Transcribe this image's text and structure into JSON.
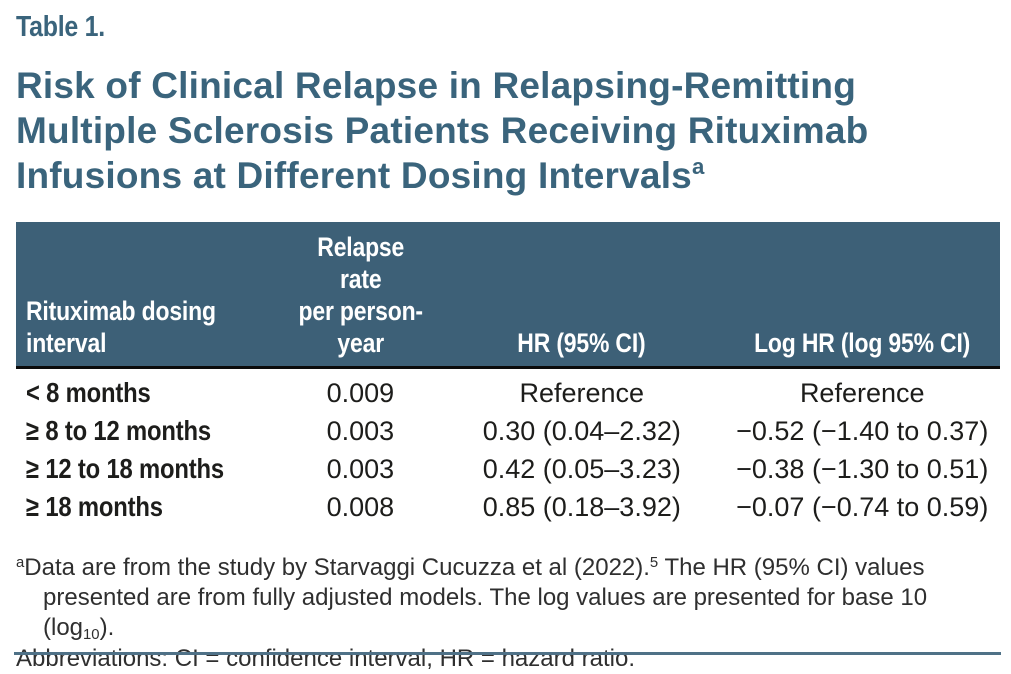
{
  "page": {
    "accent_color": "#3A647C",
    "header_bg_color": "#3D6077",
    "bottom_rule_color": "#4F7187",
    "table_label": "Table 1.",
    "title_line1": "Risk of Clinical Relapse in Relapsing-Remitting",
    "title_line2": "Multiple Sclerosis Patients Receiving Rituximab",
    "title_line3": "Infusions at Different Dosing Intervals",
    "title_superscript": "a"
  },
  "table": {
    "columns": {
      "interval_line1": "Rituximab dosing",
      "interval_line2": "interval",
      "relapse_line1": "Relapse rate",
      "relapse_line2": "per person-year",
      "hr": "HR (95% CI)",
      "log_hr": "Log HR (log 95% CI)"
    },
    "rows": [
      {
        "interval": "< 8 months",
        "relapse_rate": "0.009",
        "hr": "Reference",
        "log_hr": "Reference"
      },
      {
        "interval": "≥ 8 to 12 months",
        "relapse_rate": "0.003",
        "hr": "0.30 (0.04–2.32)",
        "log_hr": "−0.52 (−1.40 to 0.37)"
      },
      {
        "interval": "≥ 12 to 18 months",
        "relapse_rate": "0.003",
        "hr": "0.42 (0.05–3.23)",
        "log_hr": "−0.38 (−1.30 to 0.51)"
      },
      {
        "interval": "≥ 18 months",
        "relapse_rate": "0.008",
        "hr": "0.85 (0.18–3.92)",
        "log_hr": "−0.07 (−0.74 to 0.59)"
      }
    ]
  },
  "footnotes": {
    "marker": "a",
    "study_part1": "Data are from the study by Starvaggi Cucuzza et al (2022).",
    "reference_number": "5",
    "study_part2": " The HR (95% CI) values presented are from fully adjusted models. The log values are presented for base 10 (log",
    "log_base": "10",
    "study_part3": ").",
    "abbreviations": "Abbreviations: CI = confidence interval, HR = hazard ratio."
  }
}
